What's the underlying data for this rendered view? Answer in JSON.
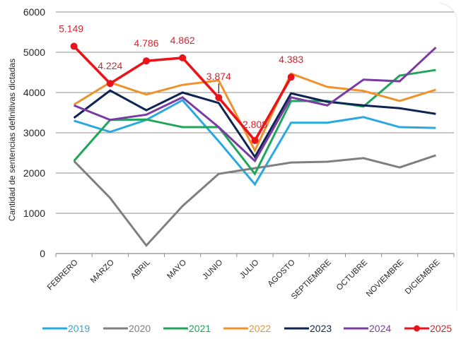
{
  "chart_data": {
    "type": "line",
    "title": "",
    "xlabel": "",
    "ylabel": "Cantidad de sentencias definitivas dictadas",
    "ylim": [
      0,
      6000
    ],
    "yticks": [
      0,
      1000,
      2000,
      3000,
      4000,
      5000,
      6000
    ],
    "grid": true,
    "legend_position": "bottom",
    "categories": [
      "FEBRERO",
      "MARZO",
      "ABRIL",
      "MAYO",
      "JUNIO",
      "JULIO",
      "AGOSTO",
      "SEPTIEMBRE",
      "OCTUBRE",
      "NOVIEMBRE",
      "DICIEMBRE"
    ],
    "series": [
      {
        "name": "2019",
        "color": "#29a9e0",
        "markers": false,
        "values": [
          3300,
          3020,
          3320,
          3810,
          2790,
          1720,
          3250,
          3250,
          3390,
          3140,
          3120
        ]
      },
      {
        "name": "2020",
        "color": "#7f7f7f",
        "markers": false,
        "values": [
          2300,
          1380,
          200,
          1180,
          1980,
          2120,
          2260,
          2280,
          2370,
          2140,
          2440
        ]
      },
      {
        "name": "2021",
        "color": "#1fa65a",
        "markers": false,
        "values": [
          2300,
          3320,
          3330,
          3140,
          3140,
          1980,
          3790,
          3790,
          3650,
          4420,
          4560
        ]
      },
      {
        "name": "2022",
        "color": "#f0922b",
        "markers": false,
        "values": [
          3700,
          4250,
          3950,
          4190,
          4300,
          2560,
          4470,
          4140,
          4040,
          3790,
          4070
        ]
      },
      {
        "name": "2023",
        "color": "#0e2452",
        "markers": false,
        "values": [
          3370,
          4050,
          3560,
          4000,
          3740,
          2400,
          3980,
          3770,
          3680,
          3610,
          3470
        ]
      },
      {
        "name": "2024",
        "color": "#7a3ba3",
        "markers": false,
        "values": [
          3680,
          3320,
          3450,
          3880,
          3140,
          2300,
          3880,
          3680,
          4320,
          4280,
          5120
        ]
      },
      {
        "name": "2025",
        "color": "#e8131b",
        "markers": true,
        "values": [
          5149,
          4224,
          4786,
          4862,
          3874,
          2808,
          4383,
          null,
          null,
          null,
          null
        ],
        "data_labels": [
          "5.149",
          "4.224",
          "4.786",
          "4.862",
          "3.874",
          "2.808",
          "4.383"
        ]
      }
    ],
    "data_label_color": "#d0262d"
  }
}
